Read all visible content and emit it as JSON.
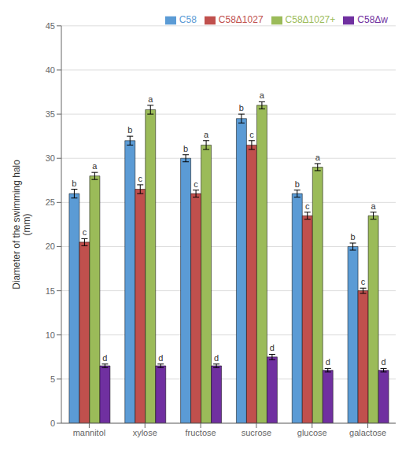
{
  "chart_data": {
    "type": "bar",
    "categories": [
      "mannitol",
      "xylose",
      "fructose",
      "sucrose",
      "glucose",
      "galactose"
    ],
    "ylabel": "Diameter of the swimming halo\n(mm)",
    "series": [
      {
        "name": "C58",
        "color": "#5b9bd5",
        "values": [
          26,
          32,
          30,
          34.5,
          26,
          20
        ],
        "errors": [
          0.5,
          0.5,
          0.4,
          0.5,
          0.4,
          0.4
        ],
        "letters": [
          "b",
          "b",
          "b",
          "b",
          "b",
          "b"
        ]
      },
      {
        "name": "C58Δ1027",
        "color": "#c0504d",
        "values": [
          20.5,
          26.5,
          26,
          31.5,
          23.5,
          15
        ],
        "errors": [
          0.4,
          0.5,
          0.4,
          0.5,
          0.4,
          0.3
        ],
        "letters": [
          "c",
          "c",
          "c",
          "c",
          "c",
          "c"
        ]
      },
      {
        "name": "C58Δ1027+",
        "color": "#9bbb59",
        "values": [
          28,
          35.5,
          31.5,
          36,
          29,
          23.5
        ],
        "errors": [
          0.4,
          0.5,
          0.5,
          0.4,
          0.4,
          0.4
        ],
        "letters": [
          "a",
          "a",
          "a",
          "a",
          "a",
          "a"
        ]
      },
      {
        "name": "C58Δw",
        "color": "#7030a0",
        "values": [
          6.5,
          6.5,
          6.5,
          7.5,
          6,
          6
        ],
        "errors": [
          0.2,
          0.2,
          0.2,
          0.3,
          0.2,
          0.2
        ],
        "letters": [
          "d",
          "d",
          "d",
          "d",
          "d",
          "d"
        ]
      }
    ],
    "ylim": [
      0,
      45
    ],
    "yticks": [
      0,
      5,
      10,
      15,
      20,
      25,
      30,
      35,
      40,
      45
    ],
    "grid": true,
    "legend": "upper right"
  }
}
